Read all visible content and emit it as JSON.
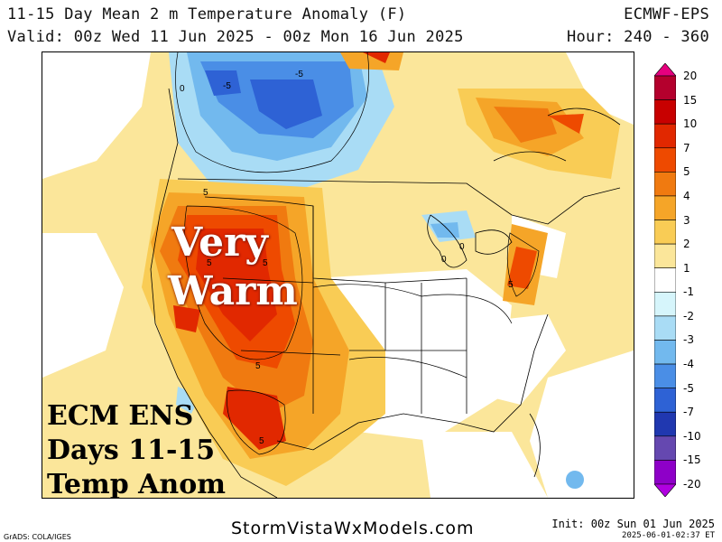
{
  "header": {
    "title": "11-15 Day Mean 2 m Temperature Anomaly (F)",
    "valid": "Valid: 00z Wed 11 Jun 2025 - 00z Mon 16 Jun 2025",
    "model": "ECMWF-EPS",
    "hour": "Hour: 240 - 360"
  },
  "overlay": {
    "line1": "Very",
    "line2": "Warm",
    "box_line1": "ECM ENS",
    "box_line2": "Days 11-15",
    "box_line3": "Temp Anom"
  },
  "contour_labels": [
    "-5",
    "-5",
    "5",
    "5",
    "5",
    "5",
    "5",
    "5",
    "0",
    "0",
    "0"
  ],
  "colorbar": {
    "levels": [
      "20",
      "15",
      "10",
      "7",
      "5",
      "4",
      "3",
      "2",
      "1",
      "-1",
      "-2",
      "-3",
      "-4",
      "-5",
      "-7",
      "-10",
      "-15",
      "-20"
    ],
    "colors": [
      "#e6007e",
      "#b4002d",
      "#c80000",
      "#e12800",
      "#ee4a00",
      "#f07a10",
      "#f5a528",
      "#f9cc55",
      "#fbe69a",
      "#ffffff",
      "#d6f5fb",
      "#a9dcf5",
      "#72b9ee",
      "#4a8ee6",
      "#2e62d5",
      "#2038b0",
      "#6548b0",
      "#8e00c8",
      "#b000e0"
    ]
  },
  "footer": {
    "site": "StormVistaWxModels.com",
    "grads": "GrADS: COLA/IGES",
    "init": "Init: 00z Sun 01 Jun 2025",
    "timestamp": "2025-06-01-02:37 ET"
  }
}
